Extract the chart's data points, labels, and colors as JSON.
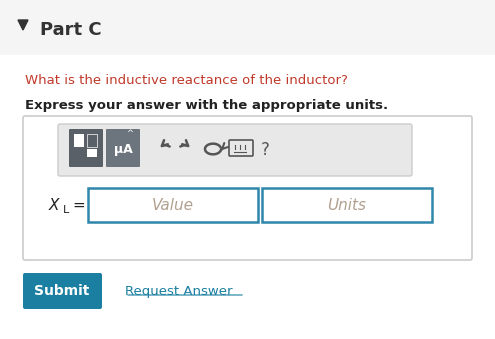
{
  "bg_color": "#f5f5f5",
  "white": "#ffffff",
  "part_label": "Part C",
  "arrow_color": "#333333",
  "question_text": "What is the inductive reactance of the inductor?",
  "question_color": "#c0392b",
  "bold_text": "Express your answer with the appropriate units.",
  "bold_color": "#222222",
  "xl_label": "X",
  "xl_sub": "L",
  "equals": " =",
  "value_placeholder": "Value",
  "units_placeholder": "Units",
  "placeholder_color": "#b0a090",
  "input_border_color": "#2e86ab",
  "toolbar_bg": "#e8e8e8",
  "toolbar_border": "#cccccc",
  "outer_box_border": "#cccccc",
  "btn1_color": "#5a6068",
  "btn2_color": "#6c757d",
  "submit_bg": "#1a7fa0",
  "submit_color": "#ffffff",
  "submit_text": "Submit",
  "request_text": "Request Answer",
  "request_color": "#1a7fa0",
  "icon_color": "#555555",
  "question_mark_color": "#555555"
}
